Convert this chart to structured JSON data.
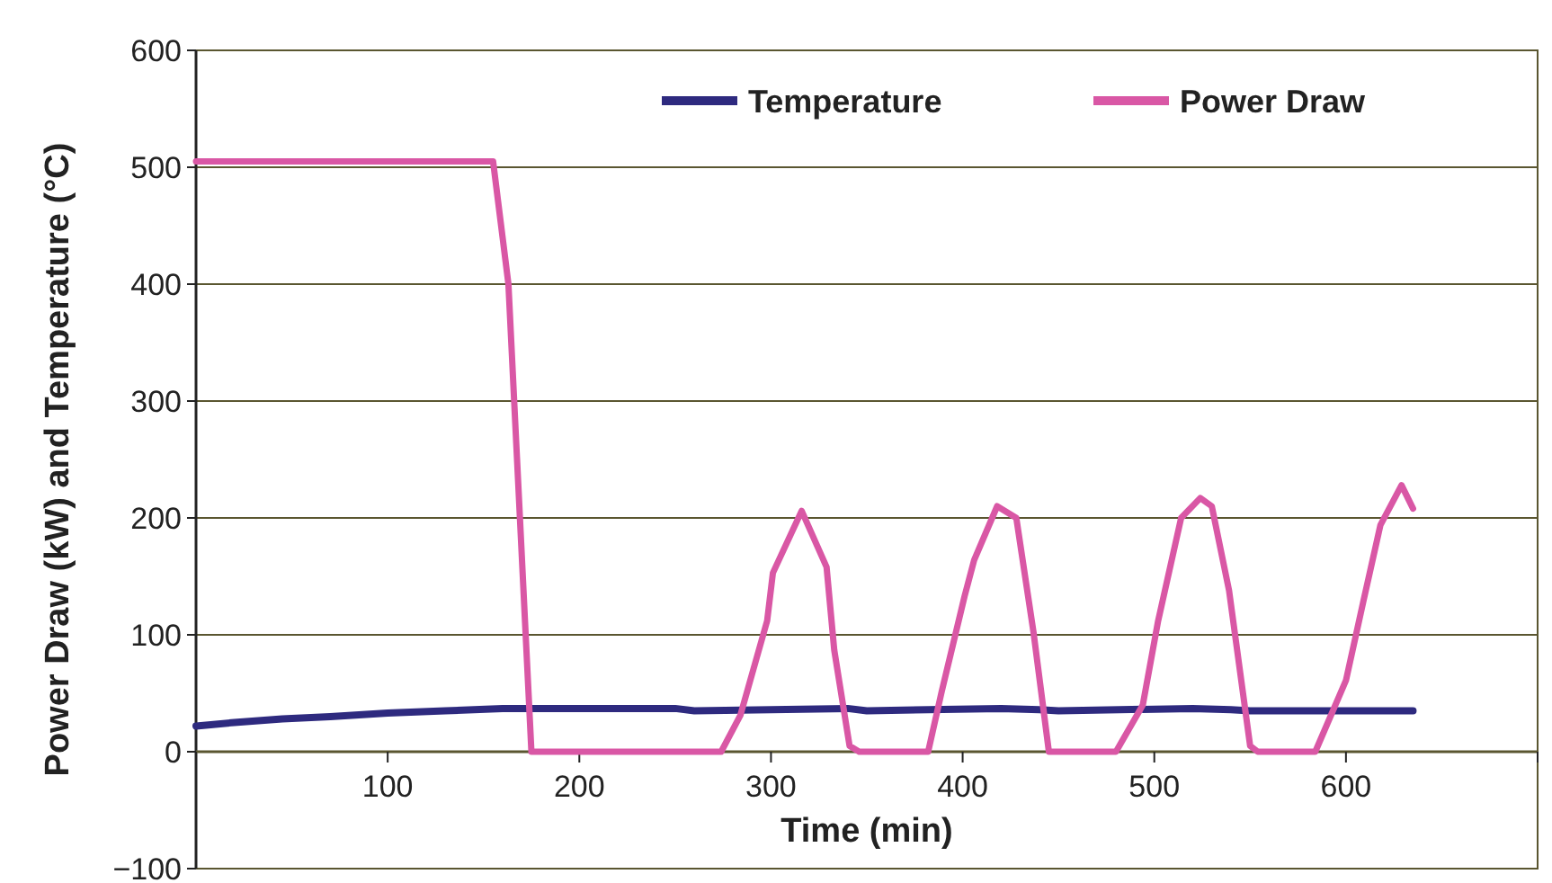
{
  "chart_data": {
    "type": "line",
    "xlabel": "Time (min)",
    "ylabel": "Power Draw (kW) and Temperature (°C)",
    "xlim": [
      0,
      700
    ],
    "xticks": [
      {
        "value": 0,
        "label": null
      },
      100,
      200,
      300,
      400,
      500,
      600,
      {
        "value": 700,
        "label": null
      }
    ],
    "ylim": [
      -100,
      600
    ],
    "yticks": [
      {
        "value": -100,
        "label": "−100"
      },
      0,
      100,
      200,
      300,
      400,
      500,
      600
    ],
    "grid": "y",
    "legend": "top right",
    "marker": "none",
    "line_style": "solid",
    "series": [
      {
        "name": "Temperature",
        "color": "#2e2a7f",
        "x": [
          0,
          20,
          45,
          70,
          100,
          130,
          160,
          250,
          260,
          340,
          350,
          420,
          440,
          450,
          520,
          540,
          550,
          635
        ],
        "values": [
          22,
          25,
          28,
          30,
          33,
          35,
          37,
          37,
          35,
          37,
          35,
          37,
          36,
          35,
          37,
          36,
          35,
          35
        ]
      },
      {
        "name": "Power Draw",
        "color": "#d957a5",
        "x": [
          0,
          155,
          163,
          169,
          175,
          177,
          274,
          284,
          298,
          301,
          316,
          329,
          333,
          341,
          346,
          382,
          389,
          401,
          406,
          418,
          428,
          437,
          445,
          480,
          494,
          502,
          514,
          524,
          530,
          539,
          550,
          554,
          584,
          600,
          609,
          618,
          629,
          635
        ],
        "values": [
          505,
          505,
          400,
          200,
          0,
          0,
          0,
          31,
          112,
          153,
          206,
          158,
          87,
          5,
          0,
          0,
          51,
          133,
          164,
          210,
          200,
          102,
          0,
          0,
          40,
          112,
          200,
          217,
          210,
          138,
          5,
          0,
          0,
          61,
          128,
          194,
          228,
          208
        ]
      }
    ]
  }
}
